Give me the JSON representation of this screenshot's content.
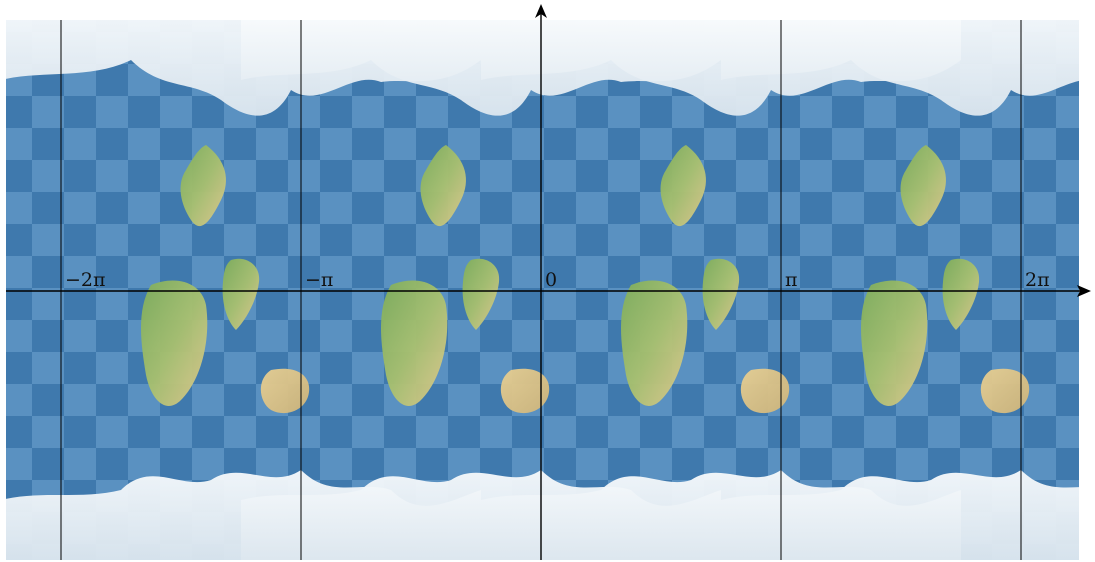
{
  "colors": {
    "ocean_dark": "#3d78ae",
    "ocean_light": "#5d93c2",
    "land_green": "#86b25e",
    "land_sand": "#dfc688",
    "ice": "#eef3f7",
    "axis": "#000000"
  },
  "axes": {
    "x_ticks": [
      {
        "value": -2,
        "label": "−2π"
      },
      {
        "value": -1,
        "label": "−π"
      },
      {
        "value": 0,
        "label": "0"
      },
      {
        "value": 1,
        "label": "π"
      },
      {
        "value": 2,
        "label": "2π"
      }
    ],
    "x_unit": "pi"
  },
  "map": {
    "projection_tiles": 4,
    "pattern": "checkerboard",
    "ice_caps": [
      "top",
      "bottom"
    ]
  }
}
